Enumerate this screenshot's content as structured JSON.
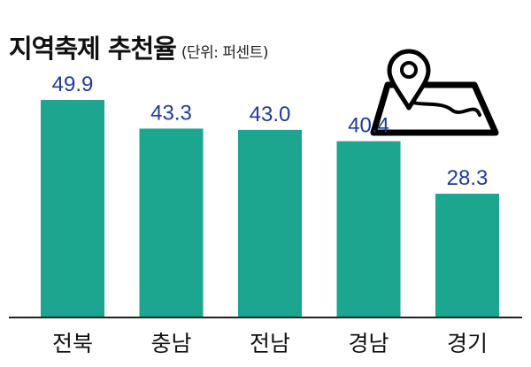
{
  "header": {
    "title": "지역축제 추천율",
    "unit": "(단위: 퍼센트)"
  },
  "icons": {
    "map": "map-pin-route-icon"
  },
  "colors": {
    "bar": "#1ca68f",
    "value_label": "#1f3b9e",
    "axis": "#222222",
    "category_label": "#111111"
  },
  "chart_data": {
    "type": "bar",
    "title": "지역축제 추천율",
    "subtitle": "(단위: 퍼센트)",
    "xlabel": "",
    "ylabel": "",
    "categories": [
      "전북",
      "충남",
      "전남",
      "경남",
      "경기"
    ],
    "values": [
      49.9,
      43.3,
      43.0,
      40.4,
      28.3
    ],
    "value_labels": [
      "49.9",
      "43.3",
      "43.0",
      "40.4",
      "28.3"
    ],
    "ylim": [
      0,
      55
    ],
    "grid": false,
    "legend": "none"
  }
}
